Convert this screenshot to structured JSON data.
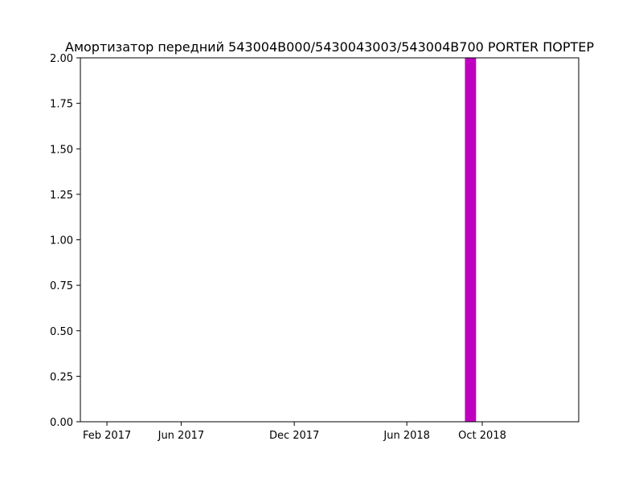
{
  "chart_data": {
    "type": "bar",
    "title": "Амортизатор передний 543004B000/5430043003/543004B700 PORTER ПОРТЕР",
    "xlabel": "",
    "ylabel": "",
    "x_axis": {
      "type": "date",
      "range": [
        "2016-12-20",
        "2019-03-06"
      ],
      "ticks": [
        {
          "date": "2017-02-01",
          "label": "Feb 2017"
        },
        {
          "date": "2017-06-01",
          "label": "Jun 2017"
        },
        {
          "date": "2017-12-01",
          "label": "Dec 2017"
        },
        {
          "date": "2018-06-01",
          "label": "Jun 2018"
        },
        {
          "date": "2018-10-01",
          "label": "Oct 2018"
        }
      ]
    },
    "y_axis": {
      "range": [
        0,
        2.0
      ],
      "ticks": [
        "0.00",
        "0.25",
        "0.50",
        "0.75",
        "1.00",
        "1.25",
        "1.50",
        "1.75",
        "2.00"
      ]
    },
    "grid": false,
    "legend": "none",
    "series": [
      {
        "color": "#bf00bf",
        "points": [
          {
            "date": "2018-09-12",
            "value": 2
          }
        ]
      }
    ]
  }
}
